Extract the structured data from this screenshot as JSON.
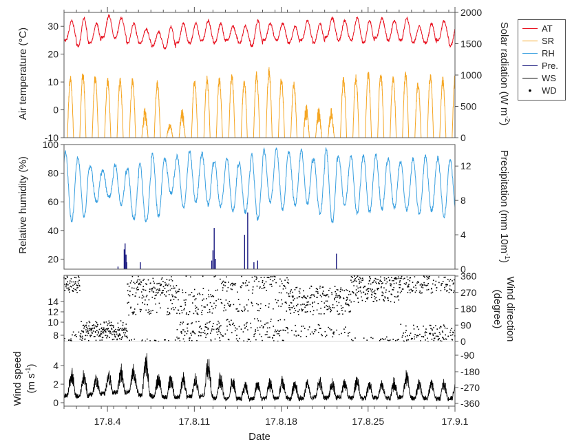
{
  "chart_data": [
    {
      "type": "line",
      "panel": "temperature-solar",
      "ylabel_left": "Air temperature (°C)",
      "ylabel_right": "Solar radiation (W m-2)",
      "ylabel_right_parts": {
        "base": "Solar radiation (W m",
        "sup": "-2",
        "end": ")"
      },
      "left_ticks": [
        -10,
        0,
        10,
        20,
        30
      ],
      "right_ticks": [
        0,
        500,
        1000,
        1500,
        2000
      ],
      "ylim_left": [
        -10,
        35
      ],
      "ylim_right": [
        0,
        2000
      ],
      "series": [
        {
          "name": "AT",
          "axis": "left",
          "color": "#e8101e",
          "day_max": [
            32,
            33,
            31,
            34,
            33,
            31,
            29,
            28,
            30,
            31,
            31,
            32,
            31,
            30,
            30,
            32,
            31,
            31,
            30,
            32,
            31,
            33,
            32,
            33,
            32,
            33,
            32,
            33,
            30,
            31,
            32,
            30,
            29,
            30,
            29,
            29,
            28
          ],
          "night_min": [
            25,
            23,
            24,
            26,
            26,
            24,
            24,
            23,
            22,
            24,
            24,
            25,
            24,
            25,
            24,
            23,
            25,
            25,
            24,
            25,
            24,
            26,
            25,
            25,
            24,
            26,
            25,
            25,
            24,
            24,
            25,
            23,
            22,
            24,
            23,
            23,
            22
          ]
        },
        {
          "name": "SR",
          "axis": "right",
          "color": "#f5a623",
          "day_peak": [
            1000,
            1080,
            1020,
            960,
            960,
            980,
            480,
            930,
            240,
            480,
            960,
            1000,
            980,
            1050,
            960,
            1080,
            1130,
            1000,
            900,
            560,
            500,
            480,
            980,
            1020,
            1080,
            1100,
            1030,
            1080,
            920,
            1060,
            980,
            1050,
            960,
            1000,
            930,
            880,
            900
          ]
        }
      ]
    },
    {
      "type": "line",
      "panel": "humidity-precipitation",
      "ylabel_left": "Relative humidity (%)",
      "ylabel_right": "Precipitation (mm 10min-1)",
      "ylabel_right_parts": {
        "base": "Precipitation (mm 10m",
        "sup": "-1",
        "end": ")"
      },
      "left_ticks": [
        20,
        40,
        60,
        80,
        100
      ],
      "right_ticks": [
        0,
        4,
        8,
        12
      ],
      "ylim_left": [
        13,
        100
      ],
      "ylim_right": [
        0,
        14.5
      ],
      "series": [
        {
          "name": "RH",
          "axis": "left",
          "color": "#3aa0e0",
          "night_max": [
            95,
            91,
            85,
            82,
            86,
            83,
            86,
            94,
            90,
            92,
            95,
            94,
            88,
            91,
            87,
            93,
            96,
            97,
            95,
            96,
            90,
            97,
            92,
            93,
            92,
            93,
            90,
            88,
            90,
            92,
            91,
            89,
            90,
            92,
            94,
            92,
            80
          ],
          "day_min": [
            47,
            50,
            60,
            63,
            58,
            48,
            46,
            50,
            66,
            56,
            60,
            58,
            57,
            54,
            53,
            48,
            60,
            55,
            58,
            59,
            52,
            46,
            58,
            52,
            53,
            55,
            56,
            54,
            52,
            54,
            50,
            52,
            54,
            48,
            48,
            42,
            35
          ]
        },
        {
          "name": "Pre.",
          "axis": "right",
          "color": "#1a1a80",
          "bars": [
            {
              "day": 4.35,
              "value": 0.3
            },
            {
              "day": 4.85,
              "value": 2.3
            },
            {
              "day": 4.92,
              "value": 3.0
            },
            {
              "day": 5.0,
              "value": 1.7
            },
            {
              "day": 5.05,
              "value": 0.8
            },
            {
              "day": 6.15,
              "value": 0.8
            },
            {
              "day": 11.9,
              "value": 1.0
            },
            {
              "day": 12.0,
              "value": 2.2
            },
            {
              "day": 12.1,
              "value": 4.8
            },
            {
              "day": 12.2,
              "value": 1.2
            },
            {
              "day": 14.55,
              "value": 4.0
            },
            {
              "day": 14.8,
              "value": 6.6
            },
            {
              "day": 15.3,
              "value": 0.8
            },
            {
              "day": 15.6,
              "value": 1.0
            },
            {
              "day": 21.95,
              "value": 1.8
            }
          ]
        }
      ]
    },
    {
      "type": "scatter",
      "panel": "wind",
      "ylabel_left": "Wind speed (m s-1)",
      "ylabel_left_parts": {
        "line1": "Wind speed",
        "line2_base": "(m s",
        "line2_sup": "-1",
        "line2_end": ")"
      },
      "ylabel_right_line1": "Wind direction",
      "ylabel_right_line2": "(degree)",
      "left_ticks_direction": [
        8,
        10,
        12,
        14
      ],
      "left_ticks_speed": [
        0,
        2,
        4
      ],
      "right_ticks_direction": [
        0,
        90,
        180,
        270,
        360
      ],
      "right_ticks_speed": [
        -90,
        -180,
        -270,
        -360
      ],
      "ylim_speed": [
        0,
        6
      ],
      "ylim_direction": [
        0,
        360
      ],
      "series": [
        {
          "name": "WS",
          "type": "line",
          "color": "#000000",
          "day_peak": [
            3.8,
            3.5,
            3.0,
            3.5,
            4.0,
            4.2,
            5.5,
            3.2,
            3.0,
            3.2,
            3.0,
            5.3,
            3.4,
            3.0,
            2.5,
            2.5,
            2.6,
            2.8,
            2.7,
            2.5,
            2.8,
            2.6,
            2.7,
            3.0,
            2.4,
            2.5,
            2.8,
            3.5,
            2.5,
            2.6,
            2.5,
            2.8,
            2.5,
            3.0,
            3.5,
            4.0,
            4.5
          ],
          "night_level": [
            0.8,
            0.7,
            0.9,
            1.0,
            1.1,
            1.2,
            0.8,
            0.7,
            0.6,
            0.6,
            0.7,
            0.8,
            0.5,
            0.4,
            0.4,
            0.4,
            0.5,
            0.5,
            0.4,
            0.5,
            0.6,
            0.5,
            0.6,
            0.5,
            0.5,
            0.5,
            0.5,
            0.6,
            0.5,
            0.5,
            0.4,
            0.5,
            0.6,
            0.7,
            0.8,
            0.8,
            1.0
          ]
        },
        {
          "name": "WD",
          "type": "scatter",
          "color": "#000000",
          "regimes": [
            {
              "from": 0,
              "to": 1.3,
              "levels": [
                300,
                340,
                20
              ]
            },
            {
              "from": 1.3,
              "to": 5.1,
              "levels": [
                40,
                60,
                80
              ]
            },
            {
              "from": 5.1,
              "to": 9.1,
              "levels": [
                260,
                300,
                340,
                180
              ]
            },
            {
              "from": 9.1,
              "to": 12.1,
              "levels": [
                30,
                80,
                180,
                260
              ]
            },
            {
              "from": 12.1,
              "to": 18.1,
              "levels": [
                40,
                90,
                200,
                300,
                340
              ]
            },
            {
              "from": 18.1,
              "to": 23.1,
              "levels": [
                60,
                180,
                230,
                270
              ]
            },
            {
              "from": 23.1,
              "to": 27.1,
              "levels": [
                250,
                320,
                350
              ]
            },
            {
              "from": 27.1,
              "to": 31.5,
              "levels": [
                340,
                300,
                60,
                20
              ]
            }
          ]
        }
      ]
    }
  ],
  "xaxis": {
    "xlabel": "Date",
    "xlim_days": [
      0,
      31.5
    ],
    "tick_labels": [
      "17.8.4",
      "17.8.11",
      "17.8.18",
      "17.8.25",
      "17.9.1"
    ],
    "tick_days": [
      3.5,
      10.5,
      17.5,
      24.5,
      31.5
    ]
  },
  "legend": {
    "position": "top-right",
    "items": [
      {
        "label": "AT",
        "color": "#e8101e",
        "kind": "line"
      },
      {
        "label": "SR",
        "color": "#f5a623",
        "kind": "line"
      },
      {
        "label": "RH",
        "color": "#3aa0e0",
        "kind": "line"
      },
      {
        "label": "Pre.",
        "color": "#1a1a80",
        "kind": "line"
      },
      {
        "label": "WS",
        "color": "#000000",
        "kind": "line"
      },
      {
        "label": "WD",
        "color": "#000000",
        "kind": "dot"
      }
    ]
  }
}
